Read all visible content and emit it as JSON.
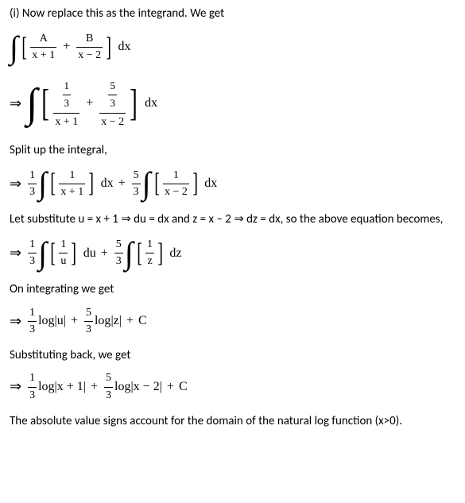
{
  "fontsize_body": 15,
  "fontsize_math": 16,
  "colors": {
    "text": "#000000",
    "background": "#ffffff",
    "rule": "#000000"
  },
  "lines": {
    "l1": "(i) Now replace this as the integrand. We get",
    "l2": "Split up the integral,",
    "l3": "Let substitute u = x + 1 ⇒ du = dx and z = x – 2 ⇒ dz = dx, so the above equation becomes,",
    "l4": "On integrating we get",
    "l5": "Substituting back, we get",
    "l6": "The absolute value signs account for the domain of the natural log function (x>0)."
  },
  "sym": {
    "arrow": "⇒",
    "int": "∫",
    "lb": "[",
    "rb": "]",
    "plus": "+",
    "minus": "−",
    "dx": "dx",
    "du": "du",
    "dz": "dz",
    "C": "C",
    "log": "log"
  },
  "frac": {
    "A": "A",
    "B": "B",
    "xp1": "x + 1",
    "xm2": "x − 2",
    "one": "1",
    "three": "3",
    "five": "5",
    "u": "u",
    "z": "z",
    "third": "3",
    "abs_u": "|u|",
    "abs_z": "|z|",
    "abs_xp1": "|x + 1|",
    "abs_xm2": "|x − 2|"
  }
}
